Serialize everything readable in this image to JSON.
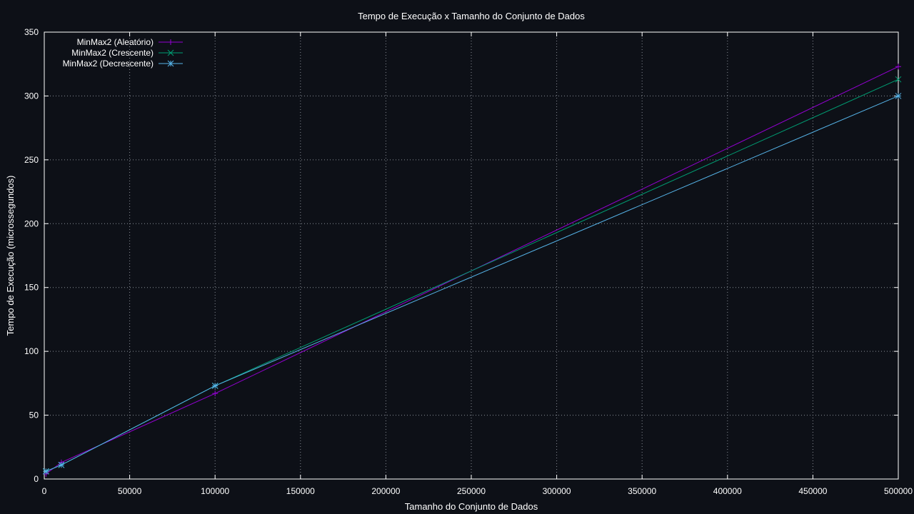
{
  "colors": {
    "background": "#0d1017",
    "axis": "#ffffff",
    "grid": "#8a8f98",
    "text": "#ffffff"
  },
  "chart_data": {
    "type": "line",
    "title": "Tempo de Execução x Tamanho do Conjunto de Dados",
    "xlabel": "Tamanho do Conjunto de Dados",
    "ylabel": "Tempo de Execução (microssegundos)",
    "xlim": [
      0,
      500000
    ],
    "ylim": [
      0,
      350
    ],
    "xticks": [
      0,
      50000,
      100000,
      150000,
      200000,
      250000,
      300000,
      350000,
      400000,
      450000,
      500000
    ],
    "yticks": [
      0,
      50,
      100,
      150,
      200,
      250,
      300,
      350
    ],
    "xtick_labels": [
      "0",
      "50000",
      "100000",
      "150000",
      "200000",
      "250000",
      "300000",
      "350000",
      "400000",
      "450000",
      "500000"
    ],
    "ytick_labels": [
      "0",
      "50",
      "100",
      "150",
      "200",
      "250",
      "300",
      "350"
    ],
    "grid": true,
    "legend_position": "top-left",
    "x": [
      1000,
      10000,
      100000,
      500000
    ],
    "series": [
      {
        "name": "MinMax2 (Aleatório)",
        "color": "#9400d3",
        "marker": "plus",
        "values": [
          4,
          13,
          67,
          323
        ]
      },
      {
        "name": "MinMax2 (Crescente)",
        "color": "#009e73",
        "marker": "cross",
        "values": [
          6,
          11,
          73,
          313
        ]
      },
      {
        "name": "MinMax2 (Decrescente)",
        "color": "#56b4e9",
        "marker": "star",
        "values": [
          6,
          11,
          73,
          300
        ]
      }
    ]
  }
}
